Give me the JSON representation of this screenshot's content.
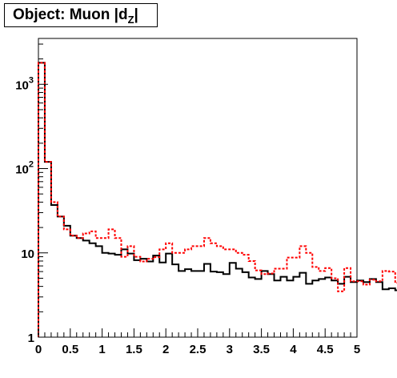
{
  "title": {
    "main": "Object: Muon |d",
    "subscript": "Z",
    "end": "|"
  },
  "chart_data": {
    "type": "line",
    "title": "Object: Muon |dZ|",
    "xlabel": "",
    "ylabel": "",
    "xlim": [
      0,
      5
    ],
    "ylim": [
      1,
      3500
    ],
    "y_scale": "log",
    "grid": false,
    "legend": "none",
    "bin_width": 0.1,
    "x_ticks": [
      {
        "value": 0,
        "label": "0"
      },
      {
        "value": 0.5,
        "label": "0.5"
      },
      {
        "value": 1,
        "label": "1"
      },
      {
        "value": 1.5,
        "label": "1.5"
      },
      {
        "value": 2,
        "label": "2"
      },
      {
        "value": 2.5,
        "label": "2.5"
      },
      {
        "value": 3,
        "label": "3"
      },
      {
        "value": 3.5,
        "label": "3.5"
      },
      {
        "value": 4,
        "label": "4"
      },
      {
        "value": 4.5,
        "label": "4.5"
      },
      {
        "value": 5,
        "label": "5"
      }
    ],
    "y_ticks": [
      {
        "value": 1,
        "label": "1"
      },
      {
        "value": 10,
        "label": "10"
      },
      {
        "value": 100,
        "label": "10",
        "exp": "2"
      },
      {
        "value": 1000,
        "label": "10",
        "exp": "3"
      }
    ],
    "series": [
      {
        "color": "#000000",
        "style": "solid",
        "values": [
          1800,
          120,
          37,
          27,
          21,
          16,
          15,
          14,
          13,
          12,
          10,
          9.8,
          9.5,
          11,
          9.8,
          8.2,
          8.5,
          7.9,
          9.3,
          7.7,
          9.8,
          7.3,
          6.1,
          6.4,
          6.1,
          6.1,
          7.4,
          6.0,
          5.9,
          5.6,
          7.6,
          6.5,
          5.9,
          5.1,
          4.9,
          6.1,
          5.6,
          4.7,
          5.2,
          4.7,
          5.2,
          5.8,
          4.3,
          4.7,
          4.9,
          5.1,
          4.7,
          4.3,
          5.2,
          4.5,
          4.7,
          4.5,
          4.9,
          4.5,
          3.7,
          3.8,
          3.6,
          4.7,
          3.7,
          5.1,
          4.3,
          4.5,
          4.7,
          4.9,
          3.9,
          3.7,
          4.7,
          4.5,
          3.6,
          3.4,
          4.5,
          4.0,
          3.4,
          3.8,
          4.6,
          4.3,
          3.8,
          4.1,
          5.0,
          3.4,
          3.4,
          4.5,
          3.6,
          3.8,
          3.7,
          3.4,
          4.3,
          4.0,
          3.4,
          2.9,
          3.8,
          4.0,
          3.4,
          2.9,
          4.5,
          3.4,
          3.6,
          4.3,
          4.0,
          4.1
        ]
      },
      {
        "color": "#ff0000",
        "style": "dotted",
        "values": [
          1800,
          120,
          40,
          27,
          19,
          16,
          15,
          17,
          18,
          15,
          15,
          19,
          15,
          9.0,
          12,
          9.0,
          7.9,
          8.5,
          8.9,
          11,
          13,
          10,
          10,
          11,
          12,
          12,
          15,
          13,
          12,
          11,
          11,
          10,
          9.5,
          8.0,
          6.2,
          5.6,
          5.7,
          6.5,
          6.5,
          8.8,
          8.8,
          12,
          10,
          6.8,
          6.1,
          6.6,
          5.0,
          3.5,
          6.6,
          4.6,
          4.6,
          4.2,
          4.8,
          4.6,
          6.1,
          6.0,
          4.4,
          4.3,
          5.0,
          4.6,
          4.4,
          4.5,
          5.2,
          7.9,
          5.6,
          6.6,
          4.3,
          5.6,
          5.5,
          5.5,
          6.0,
          4.8,
          4.6,
          5.8,
          4.5,
          4.2,
          4.5,
          4.9,
          5.1,
          4.3,
          4.5,
          4.6,
          4.6,
          4.3,
          3.4,
          4.8,
          3.6,
          3.9,
          3.6,
          4.1,
          5.0,
          4.8,
          4.2,
          4.0,
          4.7,
          3.9,
          4.1,
          4.2,
          4.3,
          4.5
        ]
      }
    ]
  }
}
